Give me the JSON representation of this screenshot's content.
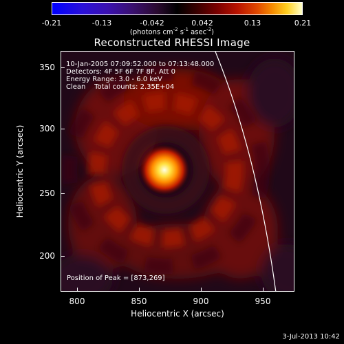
{
  "colorbar": {
    "ticks": [
      "-0.21",
      "-0.13",
      "-0.042",
      "0.042",
      "0.13",
      "0.21"
    ],
    "unit_prefix": "(photons cm",
    "unit_exp1": "-2",
    "unit_mid": " s",
    "unit_exp2": "-1",
    "unit_mid2": " asec",
    "unit_exp3": "-2",
    "unit_suffix": ")",
    "colors": [
      "#0000ff",
      "#000000",
      "#ffffc8"
    ]
  },
  "plot": {
    "title": "Reconstructed RHESSI Image",
    "info_lines": [
      "10-Jan-2005 07:09:52.000 to 07:13:48.000",
      "Detectors: 4F 5F 6F 7F 8F, Att 0",
      "Energy Range: 3.0 - 6.0 keV",
      "Clean    Total counts: 2.35E+04"
    ],
    "peak_label": "Position of Peak = [873,269]",
    "x_ticks": [
      "800",
      "850",
      "900",
      "950"
    ],
    "y_ticks": [
      "350",
      "300",
      "250",
      "200"
    ],
    "xlabel": "Heliocentric X (arcsec)",
    "ylabel": "Heliocentric Y (arcsec)"
  },
  "footer": {
    "timestamp": "3-Jul-2013 10:42"
  }
}
